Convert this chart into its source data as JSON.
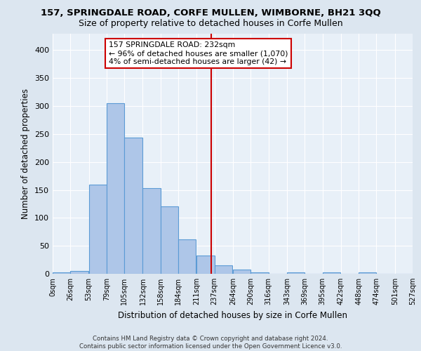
{
  "title1": "157, SPRINGDALE ROAD, CORFE MULLEN, WIMBORNE, BH21 3QQ",
  "title2": "Size of property relative to detached houses in Corfe Mullen",
  "xlabel": "Distribution of detached houses by size in Corfe Mullen",
  "ylabel": "Number of detached properties",
  "footer1": "Contains HM Land Registry data © Crown copyright and database right 2024.",
  "footer2": "Contains public sector information licensed under the Open Government Licence v3.0.",
  "bin_edges": [
    0,
    26,
    53,
    79,
    105,
    132,
    158,
    184,
    211,
    237,
    264,
    290,
    316,
    343,
    369,
    395,
    422,
    448,
    474,
    501,
    527
  ],
  "bin_counts": [
    2,
    5,
    159,
    305,
    244,
    153,
    120,
    62,
    33,
    15,
    8,
    3,
    0,
    3,
    0,
    3,
    0,
    3,
    0,
    0
  ],
  "bar_color": "#aec6e8",
  "bar_edge_color": "#5b9bd5",
  "property_size": 232,
  "vline_color": "#cc0000",
  "annotation_text": "157 SPRINGDALE ROAD: 232sqm\n← 96% of detached houses are smaller (1,070)\n4% of semi-detached houses are larger (42) →",
  "annotation_box_color": "#ffffff",
  "annotation_border_color": "#cc0000",
  "background_color": "#dce6f0",
  "plot_background_color": "#e8f0f8",
  "grid_color": "#ffffff",
  "ylim": [
    0,
    430
  ],
  "yticks": [
    0,
    50,
    100,
    150,
    200,
    250,
    300,
    350,
    400
  ]
}
